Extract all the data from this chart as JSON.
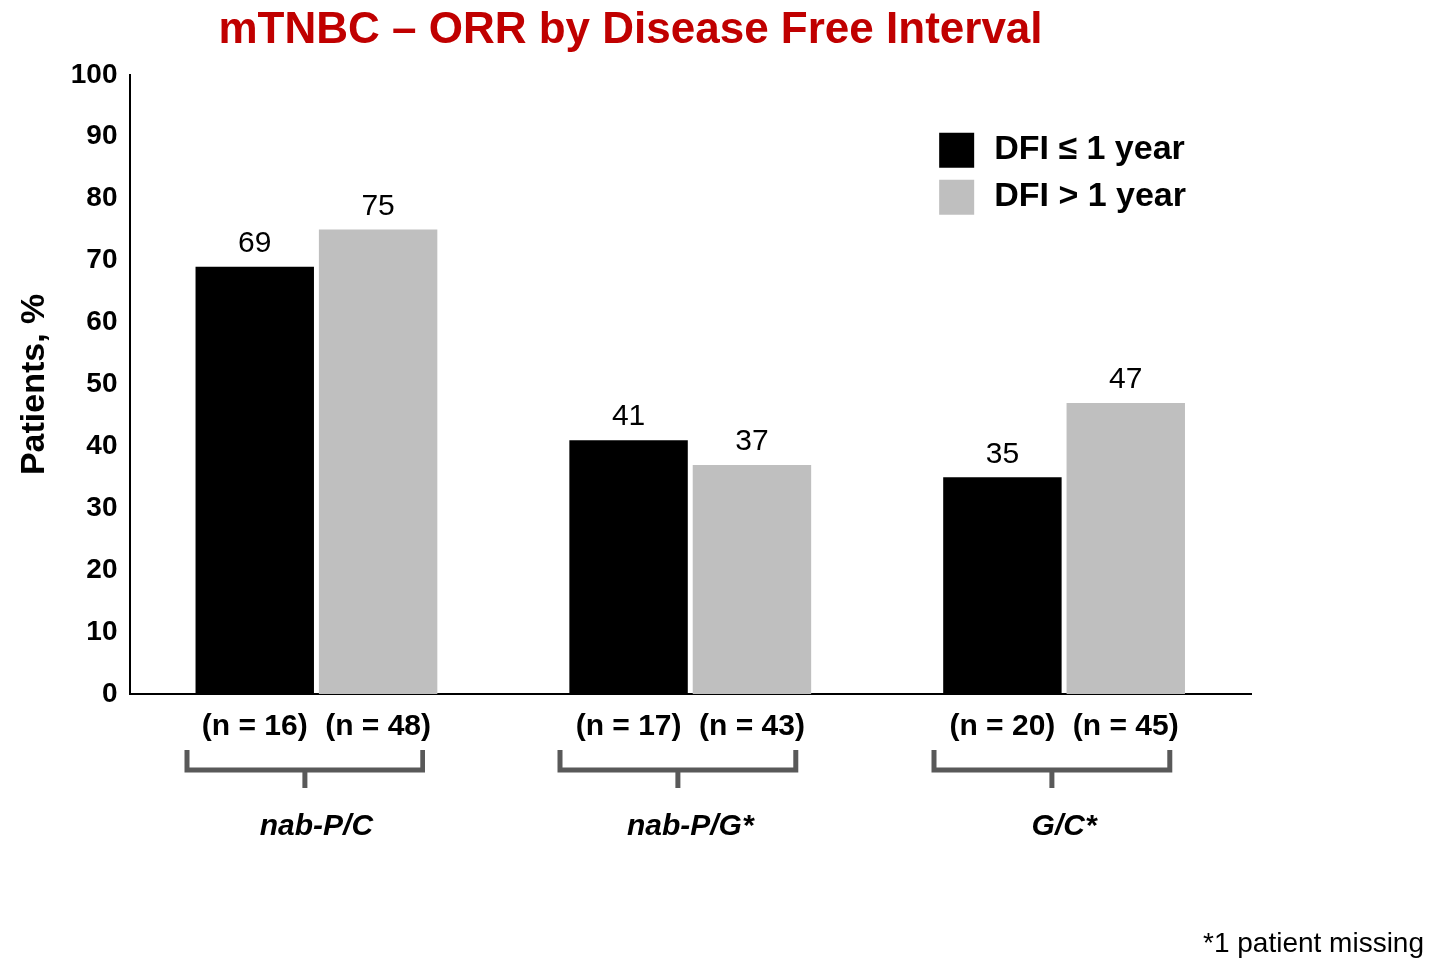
{
  "chart_data": {
    "type": "bar",
    "title": "mTNBC – ORR by Disease Free Interval",
    "ylabel": "Patients, %",
    "categories": [
      "nab-P/C",
      "nab-P/G*",
      "G/C*"
    ],
    "series": [
      {
        "name": "DFI ≤ 1 year",
        "color": "#000000",
        "values": [
          69,
          41,
          35
        ]
      },
      {
        "name": "DFI > 1 year",
        "color": "#bfbfbf",
        "values": [
          75,
          37,
          47
        ]
      }
    ],
    "ylim": [
      0,
      100
    ],
    "yticks": [
      0,
      10,
      20,
      30,
      40,
      50,
      60,
      70,
      80,
      90,
      100
    ],
    "grid": false,
    "legend": "top right",
    "data_labels": true,
    "annotations": [
      "(n = 16)",
      "(n = 48)",
      "(n = 17)",
      "(n = 43)",
      "(n = 20)",
      "(n = 45)",
      "*1 patient missing"
    ]
  }
}
